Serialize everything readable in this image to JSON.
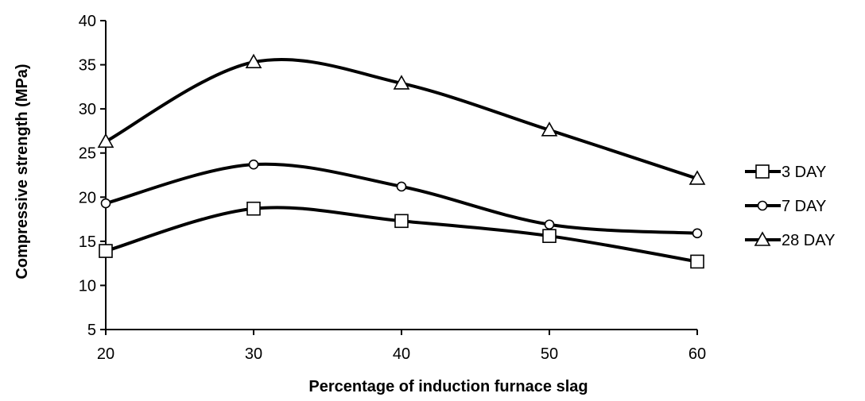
{
  "chart_data": {
    "type": "line",
    "title": "",
    "xlabel": "Percentage of induction furnace slag",
    "ylabel": "Compressive strength (MPa)",
    "x": [
      20,
      30,
      40,
      50,
      60
    ],
    "xlim": [
      20,
      60
    ],
    "ylim": [
      5,
      40
    ],
    "xticks": [
      20,
      30,
      40,
      50,
      60
    ],
    "yticks": [
      5,
      10,
      15,
      20,
      25,
      30,
      35,
      40
    ],
    "grid": false,
    "smooth": true,
    "legend_position": "right",
    "series": [
      {
        "name": "3 DAY",
        "marker": "square",
        "values": [
          13.9,
          18.7,
          17.3,
          15.6,
          12.7
        ]
      },
      {
        "name": "7 DAY",
        "marker": "circle",
        "values": [
          19.3,
          23.7,
          21.2,
          16.9,
          15.9
        ]
      },
      {
        "name": "28 DAY",
        "marker": "triangle",
        "values": [
          26.3,
          35.3,
          32.9,
          27.6,
          22.1
        ]
      }
    ],
    "colors": {
      "line": "#000000",
      "marker_fill": "#ffffff",
      "background": "#ffffff"
    }
  }
}
